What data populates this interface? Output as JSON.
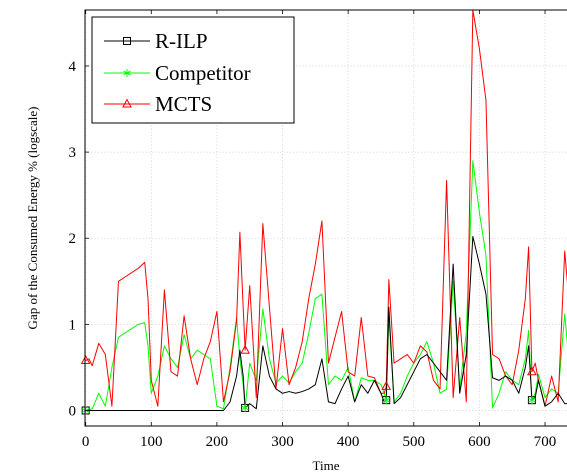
{
  "chart_data": {
    "type": "line",
    "xlabel": "Time",
    "ylabel": "Gap of the Consumed Energy % (logscale)",
    "xlim": [
      -1,
      735
    ],
    "ylim": [
      -0.18,
      4.65
    ],
    "xticks": [
      0,
      100,
      200,
      300,
      400,
      500,
      600,
      700
    ],
    "yticks": [
      0,
      1,
      2,
      3,
      4
    ],
    "legend_position": "top-left",
    "series": [
      {
        "name": "R-ILP",
        "color": "#000000",
        "marker": "square",
        "marker_x": [
          0,
          243,
          458,
          680
        ],
        "x": [
          0,
          10,
          20,
          30,
          40,
          50,
          60,
          70,
          80,
          90,
          100,
          110,
          120,
          130,
          140,
          150,
          160,
          170,
          180,
          190,
          200,
          210,
          220,
          230,
          235,
          240,
          243,
          250,
          260,
          270,
          280,
          290,
          300,
          310,
          320,
          330,
          340,
          350,
          360,
          370,
          380,
          390,
          400,
          410,
          420,
          430,
          440,
          450,
          455,
          458,
          462,
          470,
          480,
          490,
          500,
          510,
          520,
          530,
          540,
          550,
          560,
          570,
          580,
          590,
          600,
          610,
          620,
          630,
          640,
          650,
          660,
          670,
          675,
          680,
          685,
          690,
          700,
          710,
          720,
          730,
          735
        ],
        "values": [
          0,
          0,
          0,
          0,
          0,
          0,
          0,
          0,
          0,
          0,
          0,
          0,
          0,
          0,
          0,
          0,
          0,
          0,
          0,
          0,
          0,
          0,
          0.1,
          0.4,
          0.7,
          0.4,
          0.03,
          0.08,
          0.02,
          0.75,
          0.4,
          0.25,
          0.2,
          0.22,
          0.2,
          0.22,
          0.25,
          0.3,
          0.6,
          0.1,
          0.08,
          0.25,
          0.4,
          0.1,
          0.3,
          0.2,
          0.35,
          0.2,
          0.1,
          0.12,
          1.2,
          0.08,
          0.15,
          0.3,
          0.45,
          0.6,
          0.65,
          0.55,
          0.45,
          0.35,
          1.7,
          0.2,
          0.65,
          2.02,
          1.7,
          1.35,
          0.38,
          0.35,
          0.4,
          0.35,
          0.2,
          0.5,
          0.75,
          0.12,
          0.15,
          0.35,
          0.05,
          0.1,
          0.2,
          0.08,
          0.08
        ]
      },
      {
        "name": "Competitor",
        "color": "#00ff00",
        "marker": "star",
        "marker_x": [
          0,
          243,
          458,
          680
        ],
        "x": [
          0,
          10,
          20,
          30,
          40,
          50,
          60,
          70,
          80,
          90,
          95,
          100,
          110,
          120,
          130,
          140,
          150,
          160,
          170,
          180,
          190,
          200,
          210,
          220,
          230,
          235,
          240,
          243,
          250,
          260,
          270,
          280,
          290,
          300,
          310,
          320,
          330,
          340,
          350,
          360,
          370,
          380,
          390,
          400,
          410,
          420,
          430,
          440,
          450,
          455,
          458,
          462,
          470,
          480,
          490,
          500,
          510,
          520,
          530,
          540,
          550,
          560,
          570,
          580,
          590,
          600,
          610,
          620,
          630,
          640,
          650,
          660,
          670,
          675,
          680,
          685,
          690,
          700,
          710,
          720,
          730,
          735
        ],
        "values": [
          0,
          0.02,
          0.2,
          0.05,
          0.5,
          0.85,
          0.9,
          0.95,
          1.0,
          1.02,
          0.75,
          0.2,
          0.4,
          0.75,
          0.6,
          0.5,
          0.88,
          0.6,
          0.7,
          0.65,
          0.6,
          0.05,
          0.02,
          0.5,
          1.08,
          0.6,
          0.3,
          0.03,
          0.55,
          0.35,
          1.18,
          0.6,
          0.32,
          0.4,
          0.32,
          0.45,
          0.55,
          0.9,
          1.3,
          1.35,
          0.3,
          0.4,
          0.35,
          0.5,
          0.1,
          0.38,
          0.35,
          0.35,
          0.3,
          0.2,
          0.12,
          1.1,
          0.1,
          0.2,
          0.4,
          0.55,
          0.65,
          0.8,
          0.55,
          0.2,
          0.25,
          1.5,
          0.25,
          0.9,
          2.9,
          2.3,
          1.8,
          0.03,
          0.2,
          0.45,
          0.35,
          0.3,
          0.6,
          0.93,
          0.12,
          0.2,
          0.42,
          0.15,
          0.25,
          0.2,
          1.12,
          0.7
        ]
      },
      {
        "name": "MCTS",
        "color": "#ff0000",
        "marker": "triangle",
        "marker_x": [
          0,
          243,
          458,
          680
        ],
        "x": [
          0,
          5,
          10,
          20,
          30,
          40,
          50,
          60,
          70,
          80,
          90,
          95,
          100,
          110,
          120,
          130,
          140,
          150,
          160,
          170,
          180,
          190,
          200,
          210,
          220,
          230,
          235,
          240,
          243,
          250,
          260,
          270,
          280,
          290,
          300,
          310,
          320,
          330,
          340,
          350,
          360,
          370,
          380,
          390,
          400,
          410,
          420,
          430,
          440,
          450,
          455,
          458,
          462,
          470,
          480,
          490,
          500,
          510,
          520,
          530,
          540,
          550,
          560,
          570,
          580,
          590,
          600,
          610,
          620,
          630,
          640,
          650,
          660,
          670,
          675,
          680,
          685,
          690,
          700,
          710,
          720,
          730,
          735
        ],
        "values": [
          0.58,
          0.6,
          0.52,
          0.78,
          0.65,
          0.05,
          1.5,
          1.55,
          1.6,
          1.65,
          1.72,
          1.3,
          0.35,
          0.05,
          1.4,
          0.45,
          0.4,
          1.1,
          0.6,
          0.3,
          0.6,
          0.8,
          1.15,
          0.1,
          0.45,
          1.05,
          2.07,
          1.2,
          0.7,
          1.45,
          0.15,
          2.17,
          1.2,
          0.25,
          0.95,
          0.3,
          0.5,
          0.8,
          1.3,
          1.7,
          2.2,
          0.55,
          0.85,
          1.15,
          0.45,
          0.4,
          1.08,
          0.4,
          0.38,
          0.2,
          0.2,
          0.28,
          1.52,
          0.55,
          0.6,
          0.65,
          0.55,
          0.75,
          0.68,
          0.35,
          0.25,
          2.67,
          0.15,
          1.08,
          0.1,
          4.65,
          4.2,
          3.6,
          0.65,
          0.6,
          0.4,
          0.3,
          0.7,
          1.3,
          1.9,
          0.45,
          0.55,
          0.35,
          0.05,
          0.4,
          0.1,
          1.85,
          1.4
        ]
      }
    ]
  }
}
